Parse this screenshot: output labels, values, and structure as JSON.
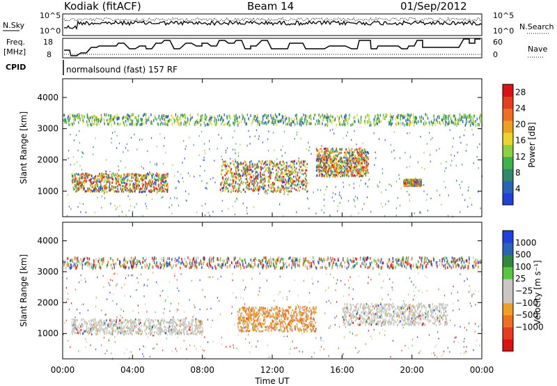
{
  "header": {
    "station": "Kodiak (fitACF)",
    "beam": "Beam 14",
    "date": "01/Sep/2012"
  },
  "noise_panel": {
    "left_label": "N.Sky",
    "right_label": "N.Search",
    "left_ticks": [
      "10^5",
      "10^0"
    ],
    "right_ticks": [
      "10^5",
      "10^0"
    ]
  },
  "freq_panel": {
    "left_label_1": "Freq.",
    "left_label_2": "[MHz]",
    "left_ticks": [
      "18",
      "8"
    ],
    "right_label": "Nave",
    "right_ticks": [
      "60",
      "0"
    ]
  },
  "cpid_panel": {
    "label": "CPID",
    "program": "normalsound (fast) 157 RF"
  },
  "chart_data": [
    {
      "type": "heatmap",
      "panel": "power",
      "ylabel": "Slant Range [km]",
      "ylim": [
        180,
        4600
      ],
      "y_ticks": [
        1000,
        2000,
        3000,
        4000
      ],
      "x_range_hours": [
        0,
        24
      ],
      "colorbar": {
        "label": "Power [dB]",
        "ticks": [
          "4",
          "8",
          "12",
          "16",
          "20",
          "24",
          "28"
        ],
        "range": [
          0,
          30
        ],
        "colors": [
          "#1f3fe0",
          "#2a64b8",
          "#2e8a6a",
          "#3cb44a",
          "#8cd23c",
          "#e8d62a",
          "#f0a020",
          "#f07020",
          "#e83c1e",
          "#e01010"
        ]
      },
      "bands": [
        {
          "from_h": 0.0,
          "to_h": 24.0,
          "range_km": [
            3150,
            3500
          ],
          "note": "scatter band"
        },
        {
          "from_h": 0.5,
          "to_h": 6.0,
          "range_km": [
            1000,
            1600
          ],
          "peak_db": 28
        },
        {
          "from_h": 9.0,
          "to_h": 14.0,
          "range_km": [
            1000,
            2000
          ],
          "peak_db": 24
        },
        {
          "from_h": 14.5,
          "to_h": 17.5,
          "range_km": [
            1500,
            2400
          ],
          "peak_db": 20
        },
        {
          "from_h": 19.5,
          "to_h": 20.5,
          "range_km": [
            1200,
            1400
          ],
          "peak_db": 28
        }
      ]
    },
    {
      "type": "heatmap",
      "panel": "velocity",
      "ylabel": "Slant Range [km]",
      "ylim": [
        180,
        4600
      ],
      "y_ticks": [
        1000,
        2000,
        3000,
        4000
      ],
      "x_range_hours": [
        0,
        24
      ],
      "xlabel": "Time UT",
      "x_ticks": [
        "00:00",
        "04:00",
        "08:00",
        "12:00",
        "16:00",
        "20:00",
        "00:00"
      ],
      "colorbar": {
        "label": "Velocity [m s⁻¹]",
        "ticks": [
          "1000",
          "500",
          "100",
          "25",
          "−25",
          "−100",
          "−500",
          "−1000"
        ],
        "colors": [
          "#1f3fe0",
          "#2a64b8",
          "#2e8a3a",
          "#56c83c",
          "#c8c8c0",
          "#c8c8c0",
          "#f0a020",
          "#f07020",
          "#e83c1e",
          "#e01010"
        ]
      },
      "bands": [
        {
          "from_h": 0.0,
          "to_h": 24.0,
          "range_km": [
            3150,
            3500
          ],
          "note": "mixed velocities"
        },
        {
          "from_h": 0.5,
          "to_h": 8.0,
          "range_km": [
            1000,
            1500
          ],
          "velocity": "ground scatter"
        },
        {
          "from_h": 10.0,
          "to_h": 14.5,
          "range_km": [
            1100,
            1900
          ],
          "velocity": "-100 to -500"
        },
        {
          "from_h": 16.0,
          "to_h": 22.0,
          "range_km": [
            1300,
            2000
          ],
          "velocity": "ground scatter"
        }
      ]
    }
  ]
}
